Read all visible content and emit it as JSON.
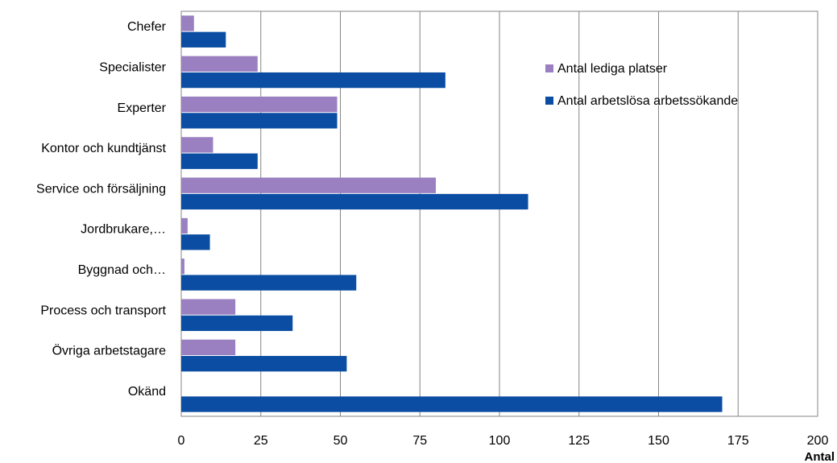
{
  "chart_data": {
    "type": "bar",
    "orientation": "horizontal",
    "categories": [
      "Chefer",
      "Specialister",
      "Experter",
      "Kontor och kundtjänst",
      "Service och försäljning",
      "Jordbrukare,…",
      "Byggnad och…",
      "Process och transport",
      "Övriga arbetstagare",
      "Okänd"
    ],
    "series": [
      {
        "name": "Antal lediga platser",
        "color": "#9a80c0",
        "values": [
          4,
          24,
          49,
          10,
          80,
          2,
          1,
          17,
          17,
          0
        ]
      },
      {
        "name": "Antal arbetslösa arbetssökande",
        "color": "#0a4da2",
        "values": [
          14,
          83,
          49,
          24,
          109,
          9,
          55,
          35,
          52,
          170
        ]
      }
    ],
    "x_ticks": [
      "0",
      "25",
      "50",
      "75",
      "100",
      "125",
      "150",
      "175",
      "200"
    ],
    "xlim": [
      0,
      200
    ],
    "xlabel": "Antal",
    "grid": true,
    "legend_position": "top-right"
  }
}
